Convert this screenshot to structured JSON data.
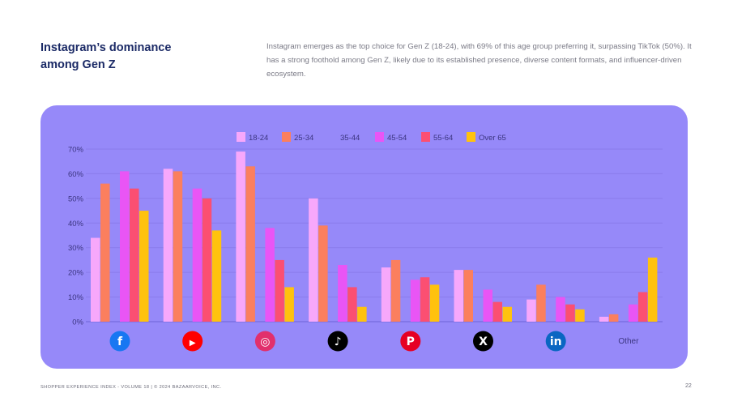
{
  "header": {
    "title_line1": "Instagram’s dominance",
    "title_line2": "among Gen Z",
    "description": "Instagram emerges as the top choice for Gen Z (18-24), with 69% of this age group preferring it, surpassing TikTok (50%). It has a strong foothold among Gen Z, likely due to its established presence, diverse content formats, and influencer-driven ecosystem."
  },
  "footer": {
    "text": "SHOPPER EXPERIENCE INDEX - VOLUME 18  |  © 2024 BAZAARVOICE, INC.",
    "page": "22"
  },
  "chart_data": {
    "type": "bar",
    "title": "",
    "xlabel": "",
    "ylabel": "",
    "ylim": [
      0,
      70
    ],
    "yticks": [
      "0%",
      "10%",
      "20%",
      "30%",
      "40%",
      "50%",
      "60%",
      "70%"
    ],
    "grid": true,
    "legend_position": "top",
    "categories": [
      "Facebook",
      "YouTube",
      "Instagram",
      "TikTok",
      "Pinterest",
      "X",
      "LinkedIn",
      "Other"
    ],
    "category_icons": [
      "facebook-icon",
      "youtube-icon",
      "instagram-icon",
      "tiktok-icon",
      "pinterest-icon",
      "x-icon",
      "linkedin-icon",
      null
    ],
    "other_label": "Other",
    "series": [
      {
        "name": "18-24",
        "color": "#f7a8fb",
        "values": [
          34,
          62,
          69,
          50,
          22,
          21,
          9,
          2
        ]
      },
      {
        "name": "25-34",
        "color": "#fb7f5e",
        "values": [
          56,
          61,
          63,
          39,
          25,
          21,
          15,
          3
        ]
      },
      {
        "name": "35-44",
        "color": null,
        "values": [
          null,
          null,
          null,
          null,
          null,
          null,
          null,
          null
        ]
      },
      {
        "name": "45-54",
        "color": "#e955f5",
        "values": [
          61,
          54,
          38,
          23,
          17,
          13,
          10,
          7
        ]
      },
      {
        "name": "55-64",
        "color": "#fb4f72",
        "values": [
          54,
          50,
          25,
          14,
          18,
          8,
          7,
          12
        ]
      },
      {
        "name": "Over 65",
        "color": "#ffc20e",
        "values": [
          45,
          37,
          14,
          6,
          15,
          6,
          5,
          26
        ]
      }
    ]
  }
}
